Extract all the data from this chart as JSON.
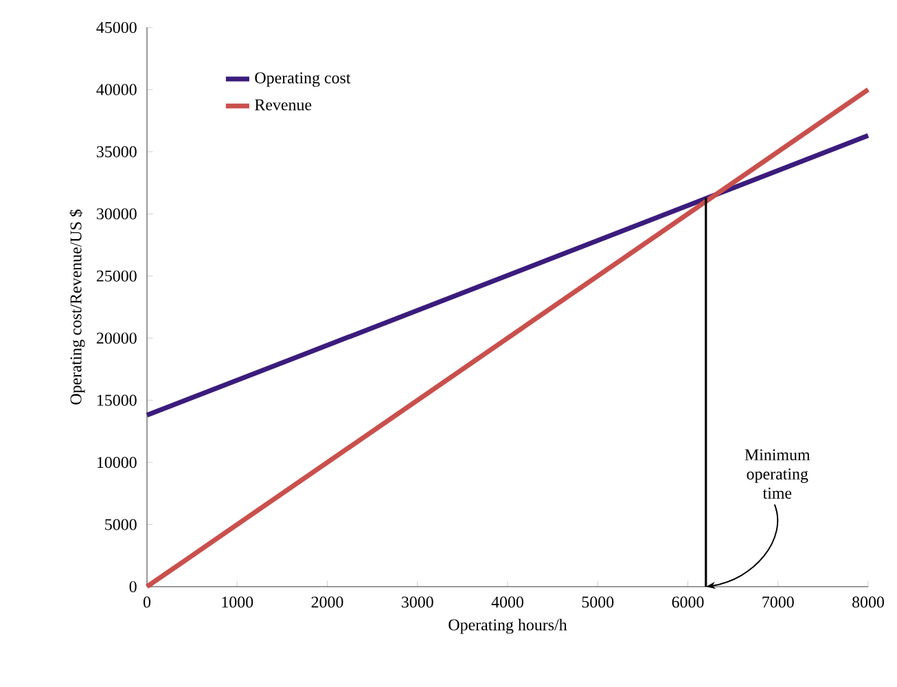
{
  "chart_data": {
    "type": "line",
    "xlabel": "Operating hours/h",
    "ylabel": "Operating cost/Revenue/US $",
    "x": [
      0,
      8000
    ],
    "series": [
      {
        "name": "Operating cost",
        "color": "#3b1c7c",
        "values": [
          13800,
          36300
        ]
      },
      {
        "name": "Revenue",
        "color": "#c9504c",
        "values": [
          0,
          40000
        ]
      },
      {
        "type": "line",
        "color": "#000000",
        "x": [
          6200,
          6200
        ],
        "values": [
          31300,
          0
        ]
      }
    ],
    "xlim": [
      0,
      8000
    ],
    "ylim": [
      0,
      45000
    ],
    "xticks": [
      0,
      1000,
      2000,
      3000,
      4000,
      5000,
      6000,
      7000,
      8000
    ],
    "yticks": [
      0,
      5000,
      10000,
      15000,
      20000,
      25000,
      30000,
      35000,
      40000,
      45000
    ],
    "annotations": [
      {
        "text": "Minimum operating time",
        "x": 6200,
        "y": 0
      }
    ],
    "legend": "top left",
    "grid": false,
    "marker": "none",
    "line_style": "solid"
  }
}
